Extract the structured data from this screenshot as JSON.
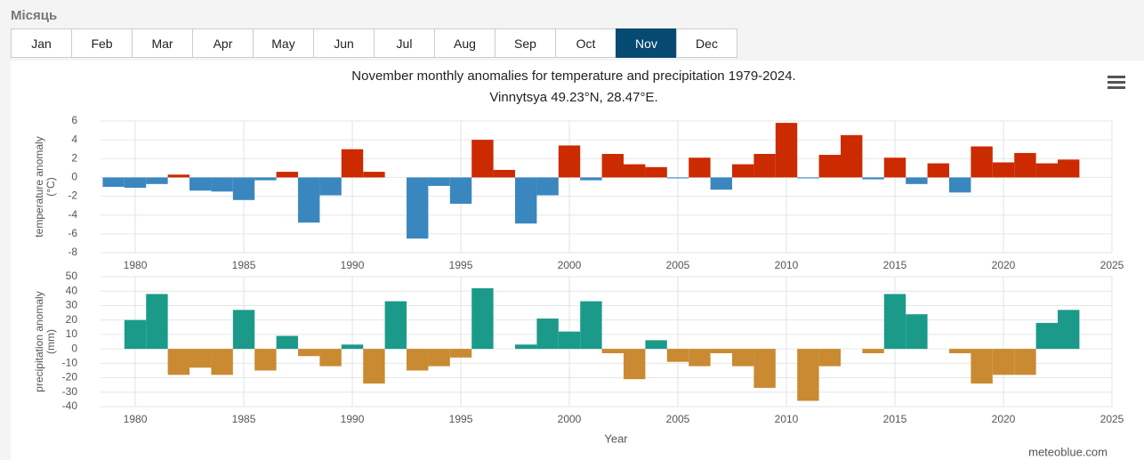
{
  "tabs": {
    "label": "Місяць",
    "months": [
      "Jan",
      "Feb",
      "Mar",
      "Apr",
      "May",
      "Jun",
      "Jul",
      "Aug",
      "Sep",
      "Oct",
      "Nov",
      "Dec"
    ],
    "active": 10
  },
  "credit": "meteoblue.com",
  "chart_data": [
    {
      "type": "bar",
      "title": "November monthly anomalies for temperature and precipitation 1979-2024.",
      "subtitle": "Vinnytsya 49.23°N, 28.47°E.",
      "y_label": [
        "temperature anomaly",
        "(°C)"
      ],
      "x": [
        1979,
        1980,
        1981,
        1982,
        1983,
        1984,
        1985,
        1986,
        1987,
        1988,
        1989,
        1990,
        1991,
        1992,
        1993,
        1994,
        1995,
        1996,
        1997,
        1998,
        1999,
        2000,
        2001,
        2002,
        2003,
        2004,
        2005,
        2006,
        2007,
        2008,
        2009,
        2010,
        2011,
        2012,
        2013,
        2014,
        2015,
        2016,
        2017,
        2018,
        2019,
        2020,
        2021,
        2022,
        2023
      ],
      "values": [
        -1.0,
        -1.1,
        -0.7,
        0.3,
        -1.4,
        -1.5,
        -2.4,
        -0.3,
        0.6,
        -4.8,
        -1.9,
        3.0,
        0.6,
        0,
        -6.5,
        -0.9,
        -2.8,
        4.0,
        0.8,
        -4.9,
        -1.9,
        3.4,
        -0.3,
        2.5,
        1.4,
        1.1,
        -0.1,
        2.1,
        -1.3,
        1.4,
        2.5,
        5.8,
        -0.1,
        2.4,
        4.5,
        -0.2,
        2.1,
        -0.7,
        1.5,
        -1.6,
        3.3,
        1.6,
        2.6,
        1.5,
        1.9
      ],
      "colors": {
        "positive": "#cc2a00",
        "negative": "#3a87c0"
      },
      "xlim": [
        1978.4,
        2025
      ],
      "xticks": [
        1980,
        1985,
        1990,
        1995,
        2000,
        2005,
        2010,
        2015,
        2020,
        2025
      ],
      "ylim": [
        -8,
        6
      ],
      "yticks": [
        -8,
        -6,
        -4,
        -2,
        0,
        2,
        4,
        6
      ],
      "grid": true
    },
    {
      "type": "bar",
      "y_label": [
        "precipitation anomaly",
        "(mm)"
      ],
      "x_label": "Year",
      "x": [
        1979,
        1980,
        1981,
        1982,
        1983,
        1984,
        1985,
        1986,
        1987,
        1988,
        1989,
        1990,
        1991,
        1992,
        1993,
        1994,
        1995,
        1996,
        1997,
        1998,
        1999,
        2000,
        2001,
        2002,
        2003,
        2004,
        2005,
        2006,
        2007,
        2008,
        2009,
        2010,
        2011,
        2012,
        2013,
        2014,
        2015,
        2016,
        2017,
        2018,
        2019,
        2020,
        2021,
        2022,
        2023
      ],
      "values": [
        0,
        20,
        38,
        -18,
        -13,
        -18,
        27,
        -15,
        9,
        -5,
        -12,
        3,
        -24,
        33,
        -15,
        -12,
        -6,
        42,
        0,
        3,
        21,
        12,
        33,
        -3,
        -21,
        6,
        -9,
        -12,
        -3,
        -12,
        -27,
        0,
        -36,
        -12,
        0,
        -3,
        38,
        24,
        0,
        -3,
        -24,
        -18,
        -18,
        18,
        27
      ],
      "colors": {
        "positive": "#1b9a8a",
        "negative": "#c98a32"
      },
      "xlim": [
        1978.4,
        2025
      ],
      "xticks": [
        1980,
        1985,
        1990,
        1995,
        2000,
        2005,
        2010,
        2015,
        2020,
        2025
      ],
      "ylim": [
        -40,
        50
      ],
      "yticks": [
        -40,
        -30,
        -20,
        -10,
        0,
        10,
        20,
        30,
        40,
        50
      ],
      "grid": true
    }
  ]
}
